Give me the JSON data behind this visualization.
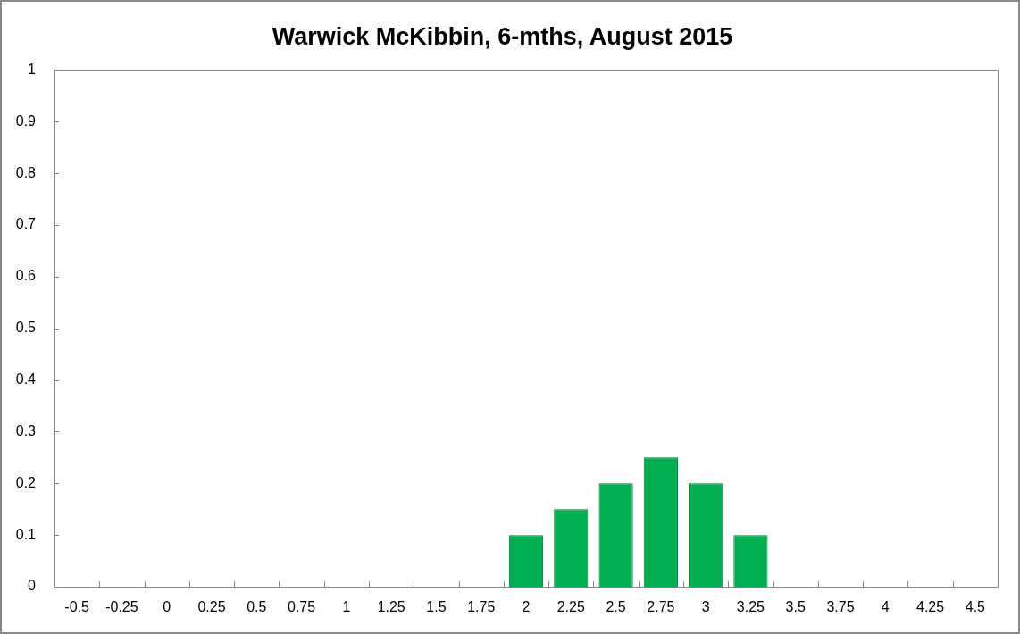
{
  "chart_data": {
    "type": "bar",
    "title": "Warwick McKibbin, 6-mths, August 2015",
    "categories": [
      "-0.5",
      "-0.25",
      "0",
      "0.25",
      "0.5",
      "0.75",
      "1",
      "1.25",
      "1.5",
      "1.75",
      "2",
      "2.25",
      "2.5",
      "2.75",
      "3",
      "3.25",
      "3.5",
      "3.75",
      "4",
      "4.25",
      "4.5"
    ],
    "values": [
      0,
      0,
      0,
      0,
      0,
      0,
      0,
      0,
      0,
      0,
      0.1,
      0.15,
      0.2,
      0.25,
      0.2,
      0.1,
      0,
      0,
      0,
      0,
      0
    ],
    "color": "#00b050",
    "ylim": [
      0,
      1
    ],
    "yticks": [
      0,
      0.1,
      0.2,
      0.3,
      0.4,
      0.5,
      0.6,
      0.7,
      0.8,
      0.9,
      1
    ],
    "legend": false
  }
}
